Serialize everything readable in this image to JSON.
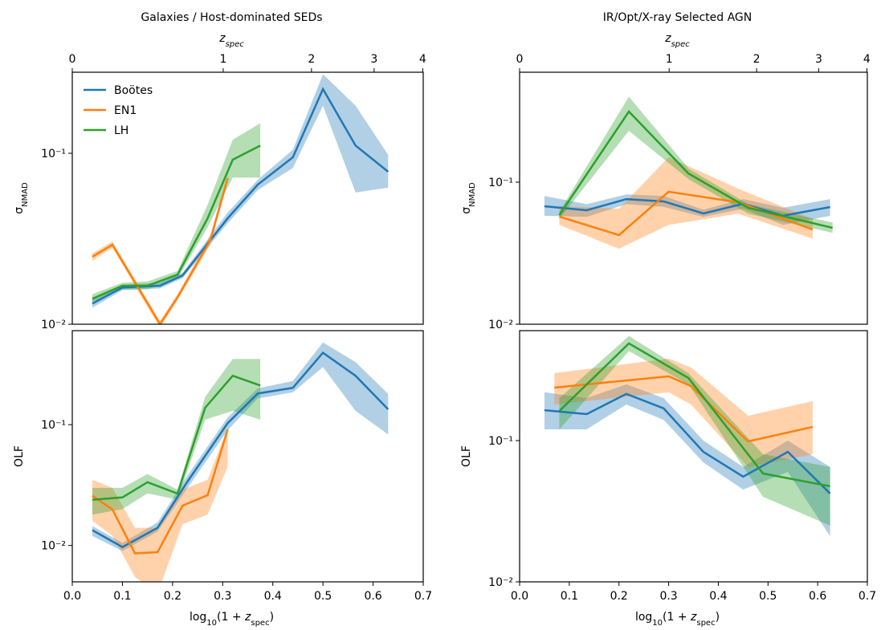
{
  "chart_data": [
    {
      "type": "line",
      "title": "Galaxies / Host-dominated SEDs",
      "top_axis_label": [
        "z",
        "spec"
      ],
      "top_ticks": [
        0,
        1,
        2,
        3,
        4
      ],
      "ylabel": [
        "σ",
        "NMAD"
      ],
      "log_y": true,
      "ylim": [
        0.01,
        0.298
      ],
      "yticks": [
        {
          "value": 0.01,
          "label": "10⁻²"
        },
        {
          "value": 0.1,
          "label": "10⁻¹"
        }
      ],
      "xlim": [
        0,
        0.7
      ],
      "legend": "upper left",
      "series": [
        {
          "name": "Boötes",
          "color": "#1f77b4",
          "x": [
            0.04,
            0.1,
            0.175,
            0.22,
            0.31,
            0.37,
            0.44,
            0.5,
            0.565,
            0.63
          ],
          "values": [
            0.0132,
            0.0164,
            0.0168,
            0.0193,
            0.0417,
            0.0656,
            0.0948,
            0.2375,
            0.111,
            0.078
          ],
          "lower": [
            0.0125,
            0.0158,
            0.0162,
            0.0186,
            0.039,
            0.061,
            0.082,
            0.19,
            0.059,
            0.063
          ],
          "upper": [
            0.014,
            0.017,
            0.0175,
            0.02,
            0.045,
            0.07,
            0.105,
            0.29,
            0.19,
            0.098
          ]
        },
        {
          "name": "EN1",
          "color": "#ff7f0e",
          "x": [
            0.04,
            0.08,
            0.175,
            0.21,
            0.275,
            0.31
          ],
          "values": [
            0.0248,
            0.0292,
            0.01,
            0.0144,
            0.0308,
            0.0715
          ],
          "lower": [
            0.0235,
            0.028,
            0.0095,
            0.0138,
            0.029,
            0.068
          ],
          "upper": [
            0.026,
            0.0305,
            0.0105,
            0.015,
            0.033,
            0.076
          ]
        },
        {
          "name": "LH",
          "color": "#2ca02c",
          "x": [
            0.04,
            0.1,
            0.15,
            0.21,
            0.27,
            0.32,
            0.375
          ],
          "values": [
            0.0141,
            0.0168,
            0.0168,
            0.0195,
            0.0417,
            0.0917,
            0.111
          ],
          "lower": [
            0.0135,
            0.016,
            0.016,
            0.0185,
            0.037,
            0.072,
            0.072
          ],
          "upper": [
            0.015,
            0.0175,
            0.0178,
            0.0205,
            0.05,
            0.12,
            0.15
          ]
        }
      ]
    },
    {
      "type": "line",
      "ylabel": [
        "OLF"
      ],
      "log_y": true,
      "ylim": [
        0.005,
        0.6
      ],
      "yticks": [
        {
          "value": 0.01,
          "label": "10⁻²"
        },
        {
          "value": 0.1,
          "label": "10⁻¹"
        }
      ],
      "xlim": [
        0,
        0.7
      ],
      "xticks": [
        {
          "value": 0,
          "label": "0.0"
        },
        {
          "value": 0.1,
          "label": "0.1"
        },
        {
          "value": 0.2,
          "label": "0.2"
        },
        {
          "value": 0.3,
          "label": "0.3"
        },
        {
          "value": 0.4,
          "label": "0.4"
        },
        {
          "value": 0.5,
          "label": "0.5"
        },
        {
          "value": 0.6,
          "label": "0.6"
        },
        {
          "value": 0.7,
          "label": "0.7"
        }
      ],
      "xlabel": [
        "log",
        "10",
        "(1 + ",
        "z",
        "spec",
        ")"
      ],
      "series": [
        {
          "name": "Boötes",
          "color": "#1f77b4",
          "x": [
            0.04,
            0.1,
            0.17,
            0.23,
            0.31,
            0.37,
            0.44,
            0.5,
            0.565,
            0.63
          ],
          "values": [
            0.0134,
            0.0097,
            0.014,
            0.0339,
            0.103,
            0.181,
            0.202,
            0.394,
            0.254,
            0.134
          ],
          "lower": [
            0.012,
            0.009,
            0.013,
            0.03,
            0.09,
            0.165,
            0.185,
            0.3,
            0.13,
            0.083
          ],
          "upper": [
            0.0145,
            0.0105,
            0.0155,
            0.038,
            0.115,
            0.2,
            0.23,
            0.48,
            0.33,
            0.18
          ]
        },
        {
          "name": "EN1",
          "color": "#ff7f0e",
          "x": [
            0.04,
            0.08,
            0.125,
            0.17,
            0.22,
            0.27,
            0.31
          ],
          "values": [
            0.0258,
            0.0199,
            0.0086,
            0.0088,
            0.0214,
            0.0261,
            0.0912
          ],
          "lower": [
            0.016,
            0.012,
            0.0055,
            0.004,
            0.015,
            0.018,
            0.045
          ],
          "upper": [
            0.035,
            0.03,
            0.014,
            0.014,
            0.029,
            0.035,
            0.095
          ]
        },
        {
          "name": "LH",
          "color": "#2ca02c",
          "x": [
            0.04,
            0.1,
            0.15,
            0.21,
            0.265,
            0.32,
            0.375
          ],
          "values": [
            0.0239,
            0.025,
            0.0334,
            0.0269,
            0.138,
            0.254,
            0.211
          ],
          "lower": [
            0.018,
            0.02,
            0.027,
            0.024,
            0.11,
            0.13,
            0.11
          ],
          "upper": [
            0.03,
            0.03,
            0.039,
            0.029,
            0.17,
            0.35,
            0.35
          ]
        }
      ]
    },
    {
      "type": "line",
      "title": "IR/Opt/X-ray Selected AGN",
      "top_axis_label": [
        "z",
        "spec"
      ],
      "top_ticks": [
        0,
        1,
        2,
        3,
        4
      ],
      "ylabel": [
        "σ",
        "NMAD"
      ],
      "log_y": true,
      "ylim": [
        0.01,
        0.594
      ],
      "yticks": [
        {
          "value": 0.01,
          "label": "10⁻²"
        },
        {
          "value": 0.1,
          "label": "10⁻¹"
        }
      ],
      "xlim": [
        0,
        0.7
      ],
      "series": [
        {
          "name": "Boötes",
          "color": "#1f77b4",
          "x": [
            0.05,
            0.135,
            0.215,
            0.29,
            0.37,
            0.45,
            0.53,
            0.625
          ],
          "values": [
            0.0677,
            0.0634,
            0.076,
            0.0732,
            0.0602,
            0.0704,
            0.058,
            0.0668
          ],
          "lower": [
            0.058,
            0.057,
            0.07,
            0.067,
            0.057,
            0.065,
            0.05,
            0.058
          ],
          "upper": [
            0.08,
            0.07,
            0.082,
            0.08,
            0.064,
            0.076,
            0.066,
            0.076
          ]
        },
        {
          "name": "EN1",
          "color": "#ff7f0e",
          "x": [
            0.08,
            0.2,
            0.3,
            0.44,
            0.59
          ],
          "values": [
            0.0572,
            0.0424,
            0.0856,
            0.0722,
            0.0464
          ],
          "lower": [
            0.05,
            0.034,
            0.05,
            0.06,
            0.04
          ],
          "upper": [
            0.068,
            0.065,
            0.15,
            0.09,
            0.055
          ]
        },
        {
          "name": "LH",
          "color": "#2ca02c",
          "x": [
            0.08,
            0.22,
            0.34,
            0.46,
            0.63
          ],
          "values": [
            0.0587,
            0.314,
            0.115,
            0.066,
            0.0477
          ],
          "lower": [
            0.055,
            0.23,
            0.105,
            0.06,
            0.044
          ],
          "upper": [
            0.062,
            0.4,
            0.125,
            0.07,
            0.052
          ]
        }
      ]
    },
    {
      "type": "line",
      "ylabel": [
        "OLF"
      ],
      "log_y": true,
      "ylim": [
        0.01,
        0.6
      ],
      "yticks": [
        {
          "value": 0.01,
          "label": "10⁻²"
        },
        {
          "value": 0.1,
          "label": "10⁻¹"
        }
      ],
      "xlim": [
        0,
        0.7
      ],
      "xticks": [
        {
          "value": 0,
          "label": "0.0"
        },
        {
          "value": 0.1,
          "label": "0.1"
        },
        {
          "value": 0.2,
          "label": "0.2"
        },
        {
          "value": 0.3,
          "label": "0.3"
        },
        {
          "value": 0.4,
          "label": "0.4"
        },
        {
          "value": 0.5,
          "label": "0.5"
        },
        {
          "value": 0.6,
          "label": "0.6"
        },
        {
          "value": 0.7,
          "label": "0.7"
        }
      ],
      "xlabel": [
        "log",
        "10",
        "(1 + ",
        "z",
        "spec",
        ")"
      ],
      "series": [
        {
          "name": "Boötes",
          "color": "#1f77b4",
          "x": [
            0.05,
            0.135,
            0.215,
            0.29,
            0.37,
            0.45,
            0.54,
            0.625
          ],
          "values": [
            0.164,
            0.154,
            0.214,
            0.169,
            0.0832,
            0.0555,
            0.0832,
            0.0422
          ],
          "lower": [
            0.12,
            0.12,
            0.18,
            0.14,
            0.07,
            0.045,
            0.06,
            0.021
          ],
          "upper": [
            0.22,
            0.2,
            0.25,
            0.2,
            0.1,
            0.065,
            0.1,
            0.065
          ]
        },
        {
          "name": "EN1",
          "color": "#ff7f0e",
          "x": [
            0.07,
            0.3,
            0.345,
            0.46,
            0.59
          ],
          "values": [
            0.237,
            0.285,
            0.243,
            0.0987,
            0.125
          ],
          "lower": [
            0.18,
            0.22,
            0.18,
            0.065,
            0.08
          ],
          "upper": [
            0.3,
            0.38,
            0.33,
            0.15,
            0.19
          ]
        },
        {
          "name": "LH",
          "color": "#2ca02c",
          "x": [
            0.08,
            0.22,
            0.34,
            0.49,
            0.625
          ],
          "values": [
            0.162,
            0.487,
            0.277,
            0.0585,
            0.0475
          ],
          "lower": [
            0.12,
            0.43,
            0.25,
            0.04,
            0.025
          ],
          "upper": [
            0.2,
            0.55,
            0.3,
            0.08,
            0.065
          ]
        }
      ]
    }
  ]
}
